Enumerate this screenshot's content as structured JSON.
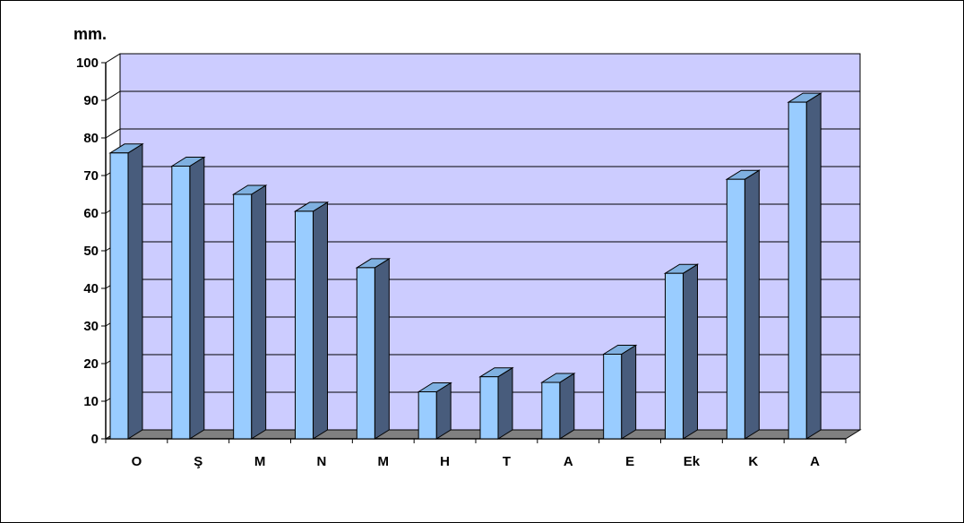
{
  "chart_data": {
    "type": "bar",
    "unit_label": "mm.",
    "categories": [
      "O",
      "Ş",
      "M",
      "N",
      "M",
      "H",
      "T",
      "A",
      "E",
      "Ek",
      "K",
      "A"
    ],
    "values": [
      76,
      72.5,
      65,
      60.5,
      45.5,
      12.5,
      16.5,
      15,
      22.5,
      44,
      69,
      89.5
    ],
    "yticks": [
      "0",
      "10",
      "20",
      "30",
      "40",
      "50",
      "60",
      "70",
      "80",
      "90",
      "100"
    ],
    "ylim": [
      0,
      100
    ],
    "grid": true,
    "colors": {
      "bar_front": "#99ccff",
      "bar_side": "#485c7c",
      "bar_top": "#7fb0e0",
      "wall": "#ccccff",
      "floor": "#808080",
      "gridline": "#000000"
    }
  }
}
